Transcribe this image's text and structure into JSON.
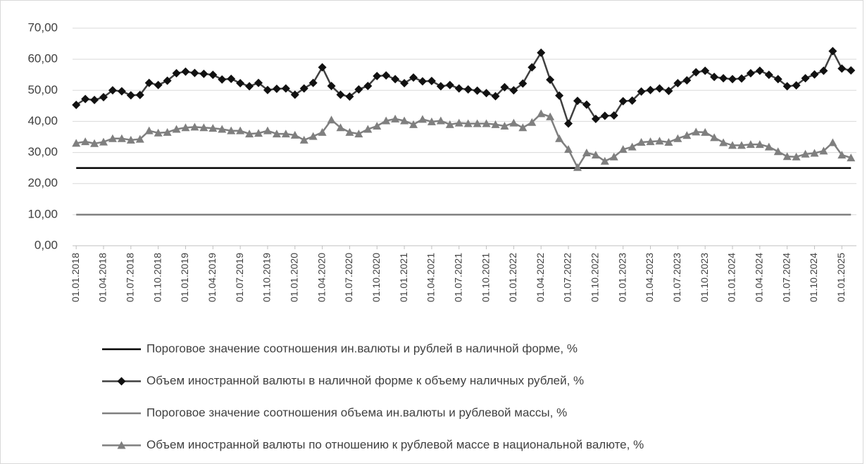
{
  "chart_data": {
    "type": "line",
    "categories": [
      "01.01.2018",
      null,
      null,
      "01.04.2018",
      null,
      null,
      "01.07.2018",
      null,
      null,
      "01.10.2018",
      null,
      null,
      "01.01.2019",
      null,
      null,
      "01.04.2019",
      null,
      null,
      "01.07.2019",
      null,
      null,
      "01.10.2019",
      null,
      null,
      "01.01.2020",
      null,
      null,
      "01.04.2020",
      null,
      null,
      "01.07.2020",
      null,
      null,
      "01.10.2020",
      null,
      null,
      "01.01.2021",
      null,
      null,
      "01.04.2021",
      null,
      null,
      "01.07.2021",
      null,
      null,
      "01.10.2021",
      null,
      null,
      "01.01.2022",
      null,
      null,
      "01.04.2022",
      null,
      null,
      "01.07.2022",
      null,
      null,
      "01.10.2022",
      null,
      null,
      "01.01.2023",
      null,
      null,
      "01.04.2023",
      null,
      null,
      "01.07.2023",
      null,
      null,
      "01.10.2023",
      null,
      null,
      "01.01.2024",
      null,
      null,
      "01.04.2024",
      null,
      null,
      "01.07.2024",
      null,
      null,
      "01.10.2024",
      null,
      null,
      "01.01.2025",
      null
    ],
    "series": [
      {
        "name": "Пороговое значение соотношения ин.валюты и рублей в наличной форме, %",
        "color": "#000000",
        "marker": "none",
        "values": [
          25,
          25,
          25,
          25,
          25,
          25,
          25,
          25,
          25,
          25,
          25,
          25,
          25,
          25,
          25,
          25,
          25,
          25,
          25,
          25,
          25,
          25,
          25,
          25,
          25,
          25,
          25,
          25,
          25,
          25,
          25,
          25,
          25,
          25,
          25,
          25,
          25,
          25,
          25,
          25,
          25,
          25,
          25,
          25,
          25,
          25,
          25,
          25,
          25,
          25,
          25,
          25,
          25,
          25,
          25,
          25,
          25,
          25,
          25,
          25,
          25,
          25,
          25,
          25,
          25,
          25,
          25,
          25,
          25,
          25,
          25,
          25,
          25,
          25,
          25,
          25,
          25,
          25,
          25,
          25,
          25,
          25,
          25,
          25,
          25,
          25
        ]
      },
      {
        "name": "Объем иностранной валюты в наличной форме к объему наличных рублей, %",
        "color": "#404040",
        "marker": "diamond",
        "values": [
          45.3,
          47.2,
          46.9,
          47.8,
          50.0,
          49.7,
          48.4,
          48.5,
          52.4,
          51.7,
          53.1,
          55.5,
          56.0,
          55.6,
          55.3,
          55.0,
          53.5,
          53.7,
          52.3,
          51.3,
          52.4,
          50.1,
          50.5,
          50.6,
          48.6,
          50.6,
          52.4,
          57.4,
          51.4,
          48.6,
          48.0,
          50.3,
          51.4,
          54.6,
          54.8,
          53.6,
          52.3,
          54.1,
          52.9,
          53.0,
          51.3,
          51.7,
          50.6,
          50.3,
          49.9,
          49.1,
          48.1,
          51.0,
          50.0,
          52.2,
          57.4,
          62.1,
          53.4,
          48.3,
          39.3,
          46.6,
          45.4,
          40.8,
          41.8,
          41.9,
          46.5,
          46.7,
          49.6,
          50.1,
          50.6,
          49.8,
          52.3,
          53.2,
          55.8,
          56.3,
          54.3,
          53.9,
          53.6,
          53.8,
          55.5,
          56.3,
          55.0,
          53.6,
          51.3,
          51.6,
          53.9,
          55.1,
          56.3,
          62.6,
          57.0,
          56.4
        ]
      },
      {
        "name": "Пороговое значение соотношения объема ин.валюты и рублевой массы, %",
        "color": "#7f7f7f",
        "marker": "none",
        "values": [
          10,
          10,
          10,
          10,
          10,
          10,
          10,
          10,
          10,
          10,
          10,
          10,
          10,
          10,
          10,
          10,
          10,
          10,
          10,
          10,
          10,
          10,
          10,
          10,
          10,
          10,
          10,
          10,
          10,
          10,
          10,
          10,
          10,
          10,
          10,
          10,
          10,
          10,
          10,
          10,
          10,
          10,
          10,
          10,
          10,
          10,
          10,
          10,
          10,
          10,
          10,
          10,
          10,
          10,
          10,
          10,
          10,
          10,
          10,
          10,
          10,
          10,
          10,
          10,
          10,
          10,
          10,
          10,
          10,
          10,
          10,
          10,
          10,
          10,
          10,
          10,
          10,
          10,
          10,
          10,
          10,
          10,
          10,
          10,
          10,
          10
        ]
      },
      {
        "name": "Объем иностранной валюты по отношению к рублевой массе в национальной валюте, %",
        "color": "#7f7f7f",
        "marker": "triangle",
        "values": [
          33.0,
          33.5,
          32.9,
          33.4,
          34.5,
          34.5,
          34.0,
          34.3,
          37.0,
          36.3,
          36.5,
          37.5,
          38.0,
          38.2,
          38.0,
          37.8,
          37.5,
          37.0,
          37.0,
          36.0,
          36.2,
          37.0,
          36.0,
          36.0,
          35.6,
          34.0,
          35.2,
          36.5,
          40.5,
          38.0,
          36.5,
          36.0,
          37.5,
          38.5,
          40.2,
          40.8,
          40.2,
          39.0,
          40.7,
          39.9,
          40.2,
          39.0,
          39.5,
          39.3,
          39.3,
          39.3,
          39.0,
          38.5,
          39.5,
          38.0,
          39.7,
          42.5,
          41.5,
          34.5,
          31.0,
          25.2,
          29.9,
          29.2,
          27.2,
          28.6,
          31.0,
          31.8,
          33.3,
          33.5,
          33.7,
          33.3,
          34.5,
          35.5,
          36.6,
          36.5,
          34.8,
          33.2,
          32.3,
          32.3,
          32.6,
          32.6,
          31.8,
          30.3,
          28.7,
          28.6,
          29.5,
          29.8,
          30.5,
          33.2,
          29.2,
          28.3
        ]
      }
    ],
    "ylim": [
      0,
      70
    ],
    "yticks": [
      {
        "value": 0,
        "label": "0,00"
      },
      {
        "value": 10,
        "label": "10,00"
      },
      {
        "value": 20,
        "label": "20,00"
      },
      {
        "value": 30,
        "label": "30,00"
      },
      {
        "value": 40,
        "label": "40,00"
      },
      {
        "value": 50,
        "label": "50,00"
      },
      {
        "value": 60,
        "label": "60,00"
      },
      {
        "value": 70,
        "label": "70,00"
      }
    ],
    "grid": true,
    "legend": "bottom"
  }
}
